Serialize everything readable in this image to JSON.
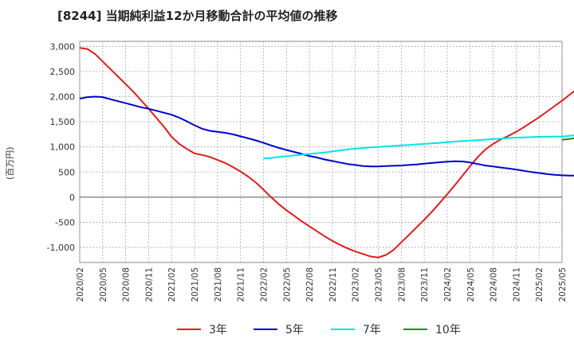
{
  "chart_data": {
    "type": "line",
    "title": "[8244]  当期純利益12か月移動合計の平均値の推移",
    "ylabel": "(百万円)",
    "xlabel": "",
    "ylim": [
      -1300,
      3100
    ],
    "yticks": [
      3000,
      2500,
      2000,
      1500,
      1000,
      500,
      0,
      -500,
      -1000
    ],
    "ytick_labels": [
      "3,000",
      "2,500",
      "2,000",
      "1,500",
      "1,000",
      "500",
      "0",
      "-500",
      "-1,000"
    ],
    "xticks": [
      "2020/02",
      "2020/05",
      "2020/08",
      "2020/11",
      "2021/02",
      "2021/05",
      "2021/08",
      "2021/11",
      "2022/02",
      "2022/05",
      "2022/08",
      "2022/11",
      "2023/02",
      "2023/05",
      "2023/08",
      "2023/11",
      "2024/02",
      "2024/05",
      "2024/08",
      "2024/11",
      "2025/02",
      "2025/05"
    ],
    "grid": true,
    "legend_position": "bottom",
    "series": [
      {
        "name": "3年",
        "color": "#e41a1c",
        "points": [
          [
            "2020/02",
            2970
          ],
          [
            "2020/03",
            2950
          ],
          [
            "2020/04",
            2850
          ],
          [
            "2020/05",
            2700
          ],
          [
            "2020/06",
            2550
          ],
          [
            "2020/07",
            2400
          ],
          [
            "2020/08",
            2250
          ],
          [
            "2020/09",
            2100
          ],
          [
            "2020/10",
            1930
          ],
          [
            "2020/11",
            1760
          ],
          [
            "2020/12",
            1580
          ],
          [
            "2021/01",
            1400
          ],
          [
            "2021/02",
            1200
          ],
          [
            "2021/03",
            1060
          ],
          [
            "2021/04",
            960
          ],
          [
            "2021/05",
            870
          ],
          [
            "2021/06",
            840
          ],
          [
            "2021/07",
            800
          ],
          [
            "2021/08",
            740
          ],
          [
            "2021/09",
            680
          ],
          [
            "2021/10",
            600
          ],
          [
            "2021/11",
            510
          ],
          [
            "2021/12",
            410
          ],
          [
            "2022/01",
            290
          ],
          [
            "2022/02",
            150
          ],
          [
            "2022/03",
            0
          ],
          [
            "2022/04",
            -140
          ],
          [
            "2022/05",
            -260
          ],
          [
            "2022/06",
            -370
          ],
          [
            "2022/07",
            -480
          ],
          [
            "2022/08",
            -580
          ],
          [
            "2022/09",
            -680
          ],
          [
            "2022/10",
            -780
          ],
          [
            "2022/11",
            -870
          ],
          [
            "2022/12",
            -950
          ],
          [
            "2023/01",
            -1020
          ],
          [
            "2023/02",
            -1080
          ],
          [
            "2023/03",
            -1130
          ],
          [
            "2023/04",
            -1180
          ],
          [
            "2023/05",
            -1200
          ],
          [
            "2023/06",
            -1150
          ],
          [
            "2023/07",
            -1050
          ],
          [
            "2023/08",
            -900
          ],
          [
            "2023/09",
            -750
          ],
          [
            "2023/10",
            -600
          ],
          [
            "2023/11",
            -450
          ],
          [
            "2023/12",
            -290
          ],
          [
            "2024/01",
            -120
          ],
          [
            "2024/02",
            60
          ],
          [
            "2024/03",
            240
          ],
          [
            "2024/04",
            430
          ],
          [
            "2024/05",
            620
          ],
          [
            "2024/06",
            800
          ],
          [
            "2024/07",
            950
          ],
          [
            "2024/08",
            1060
          ],
          [
            "2024/09",
            1150
          ],
          [
            "2024/10",
            1220
          ],
          [
            "2024/11",
            1300
          ],
          [
            "2024/12",
            1390
          ],
          [
            "2025/01",
            1490
          ],
          [
            "2025/02",
            1590
          ],
          [
            "2025/03",
            1700
          ],
          [
            "2025/04",
            1810
          ],
          [
            "2025/05",
            1920
          ],
          [
            "2025/06",
            2040
          ],
          [
            "2025/07",
            2160
          ]
        ]
      },
      {
        "name": "5年",
        "color": "#0000cc",
        "points": [
          [
            "2020/02",
            1960
          ],
          [
            "2020/03",
            1990
          ],
          [
            "2020/04",
            2000
          ],
          [
            "2020/05",
            1990
          ],
          [
            "2020/06",
            1950
          ],
          [
            "2020/07",
            1910
          ],
          [
            "2020/08",
            1870
          ],
          [
            "2020/09",
            1830
          ],
          [
            "2020/10",
            1790
          ],
          [
            "2020/11",
            1760
          ],
          [
            "2020/12",
            1720
          ],
          [
            "2021/01",
            1680
          ],
          [
            "2021/02",
            1640
          ],
          [
            "2021/03",
            1580
          ],
          [
            "2021/04",
            1510
          ],
          [
            "2021/05",
            1430
          ],
          [
            "2021/06",
            1360
          ],
          [
            "2021/07",
            1320
          ],
          [
            "2021/08",
            1300
          ],
          [
            "2021/09",
            1280
          ],
          [
            "2021/10",
            1250
          ],
          [
            "2021/11",
            1210
          ],
          [
            "2021/12",
            1170
          ],
          [
            "2022/01",
            1130
          ],
          [
            "2022/02",
            1080
          ],
          [
            "2022/03",
            1030
          ],
          [
            "2022/04",
            980
          ],
          [
            "2022/05",
            940
          ],
          [
            "2022/06",
            900
          ],
          [
            "2022/07",
            860
          ],
          [
            "2022/08",
            820
          ],
          [
            "2022/09",
            790
          ],
          [
            "2022/10",
            750
          ],
          [
            "2022/11",
            720
          ],
          [
            "2022/12",
            690
          ],
          [
            "2023/01",
            660
          ],
          [
            "2023/02",
            640
          ],
          [
            "2023/03",
            620
          ],
          [
            "2023/04",
            610
          ],
          [
            "2023/05",
            610
          ],
          [
            "2023/06",
            620
          ],
          [
            "2023/07",
            625
          ],
          [
            "2023/08",
            630
          ],
          [
            "2023/09",
            640
          ],
          [
            "2023/10",
            650
          ],
          [
            "2023/11",
            665
          ],
          [
            "2023/12",
            680
          ],
          [
            "2024/01",
            695
          ],
          [
            "2024/02",
            705
          ],
          [
            "2024/03",
            715
          ],
          [
            "2024/04",
            710
          ],
          [
            "2024/05",
            690
          ],
          [
            "2024/06",
            660
          ],
          [
            "2024/07",
            630
          ],
          [
            "2024/08",
            610
          ],
          [
            "2024/09",
            590
          ],
          [
            "2024/10",
            570
          ],
          [
            "2024/11",
            550
          ],
          [
            "2024/12",
            525
          ],
          [
            "2025/01",
            500
          ],
          [
            "2025/02",
            480
          ],
          [
            "2025/03",
            460
          ],
          [
            "2025/04",
            445
          ],
          [
            "2025/05",
            435
          ],
          [
            "2025/06",
            430
          ],
          [
            "2025/07",
            430
          ]
        ]
      },
      {
        "name": "7年",
        "color": "#00e5e5",
        "points": [
          [
            "2022/02",
            770
          ],
          [
            "2022/03",
            780
          ],
          [
            "2022/04",
            800
          ],
          [
            "2022/05",
            815
          ],
          [
            "2022/06",
            830
          ],
          [
            "2022/07",
            845
          ],
          [
            "2022/08",
            860
          ],
          [
            "2022/09",
            875
          ],
          [
            "2022/10",
            890
          ],
          [
            "2022/11",
            910
          ],
          [
            "2022/12",
            930
          ],
          [
            "2023/01",
            950
          ],
          [
            "2023/02",
            965
          ],
          [
            "2023/03",
            975
          ],
          [
            "2023/04",
            990
          ],
          [
            "2023/05",
            1000
          ],
          [
            "2023/06",
            1010
          ],
          [
            "2023/07",
            1020
          ],
          [
            "2023/08",
            1030
          ],
          [
            "2023/09",
            1040
          ],
          [
            "2023/10",
            1050
          ],
          [
            "2023/11",
            1060
          ],
          [
            "2023/12",
            1070
          ],
          [
            "2024/01",
            1080
          ],
          [
            "2024/02",
            1095
          ],
          [
            "2024/03",
            1105
          ],
          [
            "2024/04",
            1115
          ],
          [
            "2024/05",
            1125
          ],
          [
            "2024/06",
            1135
          ],
          [
            "2024/07",
            1145
          ],
          [
            "2024/08",
            1155
          ],
          [
            "2024/09",
            1165
          ],
          [
            "2024/10",
            1175
          ],
          [
            "2024/11",
            1185
          ],
          [
            "2024/12",
            1190
          ],
          [
            "2025/01",
            1195
          ],
          [
            "2025/02",
            1200
          ],
          [
            "2025/03",
            1200
          ],
          [
            "2025/04",
            1205
          ],
          [
            "2025/05",
            1205
          ],
          [
            "2025/06",
            1220
          ],
          [
            "2025/07",
            1240
          ]
        ]
      },
      {
        "name": "10年",
        "color": "#228b22",
        "points": [
          [
            "2025/05",
            1140
          ],
          [
            "2025/06",
            1160
          ],
          [
            "2025/07",
            1185
          ]
        ]
      }
    ]
  }
}
